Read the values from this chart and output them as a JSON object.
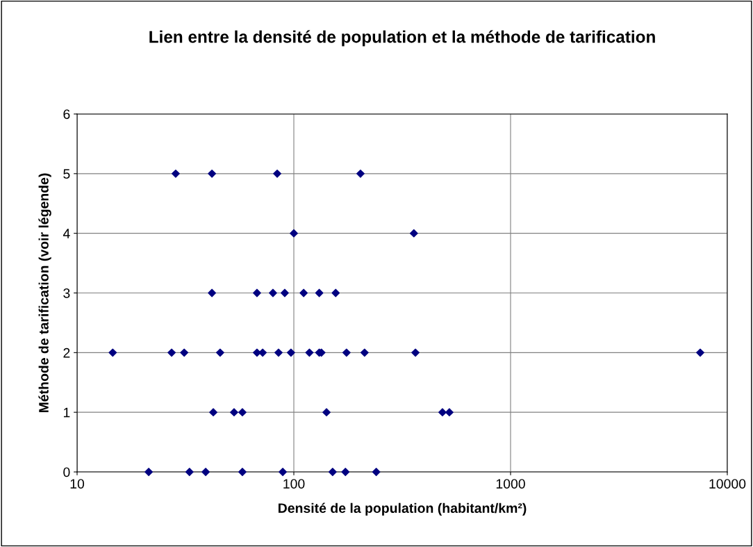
{
  "chart_data": {
    "type": "scatter",
    "title": "Lien entre la densité de population et la méthode de tarification",
    "xlabel": "Densité de la population (habitant/km²)",
    "ylabel": "Méthode de tarification (voir légende)",
    "log": "x",
    "xlim": [
      10,
      10000
    ],
    "xticks": [
      10,
      100,
      1000,
      10000
    ],
    "ylim": [
      0,
      6
    ],
    "yticks": [
      0,
      1,
      2,
      3,
      4,
      5,
      6
    ],
    "grid": true,
    "marker": "diamond",
    "series": [
      {
        "color": "#000080",
        "x": [
          28.5,
          41.9,
          83.8,
          203,
          100,
          358,
          41.9,
          67.6,
          80.1,
          90.8,
          111,
          131,
          156,
          14.6,
          27.3,
          31.2,
          45.7,
          67.6,
          71.8,
          85,
          97,
          118,
          131,
          134,
          175,
          212,
          364,
          7500,
          42.5,
          53,
          57.9,
          141.5,
          485,
          522,
          21.4,
          33,
          39.2,
          57.9,
          88.9,
          151,
          173,
          240
        ],
        "values": [
          5,
          5,
          5,
          5,
          4,
          4,
          3,
          3,
          3,
          3,
          3,
          3,
          3,
          2,
          2,
          2,
          2,
          2,
          2,
          2,
          2,
          2,
          2,
          2,
          2,
          2,
          2,
          2,
          1,
          1,
          1,
          1,
          1,
          1,
          0,
          0,
          0,
          0,
          0,
          0,
          0,
          0
        ]
      }
    ]
  }
}
